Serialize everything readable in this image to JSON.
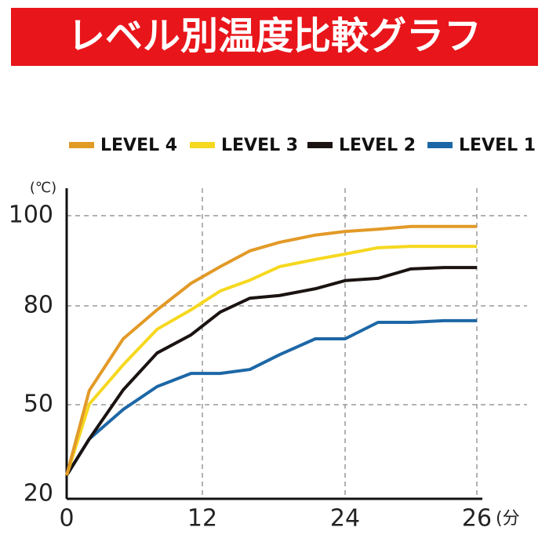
{
  "chart_data": {
    "type": "line",
    "title": "レベル別温度比較グラフ",
    "y_label": "(℃)",
    "x_label": "(分",
    "x": [
      0,
      2,
      5,
      8,
      11,
      13.5,
      16,
      18.5,
      21.5,
      24,
      24.5,
      25,
      25.5,
      26
    ],
    "series": [
      {
        "name": "LEVEL 4",
        "color": "#e29a27",
        "values": [
          26.3,
          54.3,
          70,
          78.8,
          85,
          88.7,
          92.2,
          94.1,
          95.7,
          96.5,
          97,
          97.6,
          97.6,
          97.6
        ]
      },
      {
        "name": "LEVEL 3",
        "color": "#f6d81f",
        "values": [
          26.3,
          50.2,
          62.1,
          72.9,
          78.8,
          83.3,
          85.7,
          88.7,
          90.3,
          91.5,
          92.9,
          93.2,
          93.2,
          93.2
        ]
      },
      {
        "name": "LEVEL 2",
        "color": "#1a1311",
        "values": [
          26.3,
          38.5,
          54.5,
          65.7,
          71.2,
          78.1,
          81.7,
          82.3,
          83.8,
          85.6,
          86.1,
          88.2,
          88.5,
          88.5
        ]
      },
      {
        "name": "LEVEL 1",
        "color": "#1d67a6",
        "values": [
          26.3,
          38.5,
          48.4,
          55.5,
          59.5,
          59.5,
          60.7,
          65.2,
          70,
          70,
          75,
          75,
          75.5,
          75.5
        ]
      }
    ],
    "xlim": [
      0,
      26
    ],
    "xticks": [
      0,
      12,
      24,
      26
    ],
    "ylim": [
      20,
      100
    ],
    "yticks": [
      20,
      50,
      80,
      100
    ],
    "grid": true,
    "legend": "top"
  }
}
